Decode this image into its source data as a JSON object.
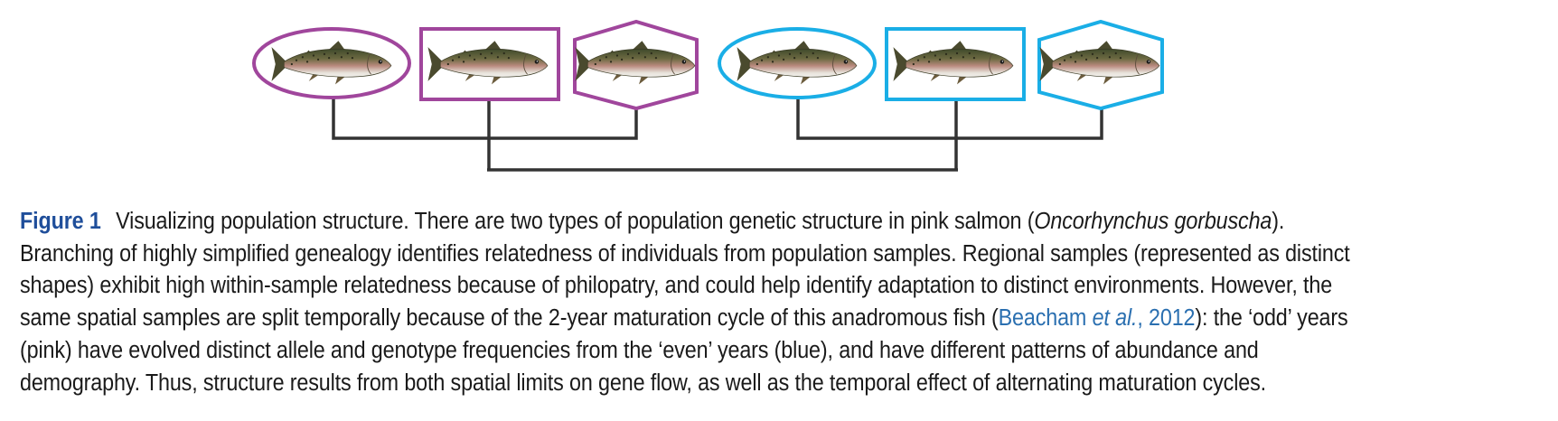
{
  "figure": {
    "colors": {
      "odd_year": "#A0469C",
      "even_year": "#1AAEE6",
      "tree": "#333333",
      "figure_label": "#1f4e9a",
      "citation_link": "#2a6fb0"
    },
    "samples": [
      {
        "shape": "ellipse",
        "group": "odd_year",
        "icon": "pink-salmon-icon"
      },
      {
        "shape": "square",
        "group": "odd_year",
        "icon": "pink-salmon-icon"
      },
      {
        "shape": "hexagon",
        "group": "odd_year",
        "icon": "pink-salmon-icon"
      },
      {
        "shape": "ellipse",
        "group": "even_year",
        "icon": "pink-salmon-icon"
      },
      {
        "shape": "square",
        "group": "even_year",
        "icon": "pink-salmon-icon"
      },
      {
        "shape": "hexagon",
        "group": "even_year",
        "icon": "pink-salmon-icon"
      }
    ]
  },
  "caption": {
    "label": "Figure 1",
    "lines": {
      "l1_a": "Visualizing population structure. There are two types of population genetic structure in pink salmon (",
      "l1_species": "Oncorhynchus gorbuscha",
      "l1_b": ").",
      "l2": "Branching of highly simplified genealogy identifies relatedness of individuals from population samples. Regional samples (represented as distinct",
      "l3": "shapes) exhibit high within-sample relatedness because of philopatry, and could help identify adaptation to distinct environments. However, the",
      "l4_a": "same spatial samples are split temporally because of the 2-year maturation cycle of this anadromous fish (",
      "cite_author": "Beacham ",
      "cite_etal": "et al.",
      "cite_year": ", 2012",
      "l4_b": "): the ‘odd’ years",
      "l5": "(pink) have evolved distinct allele and genotype frequencies from the ‘even’ years (blue), and have different patterns of abundance and",
      "l6": "demography. Thus, structure results from both spatial limits on gene flow, as well as the temporal effect of alternating maturation cycles."
    }
  }
}
